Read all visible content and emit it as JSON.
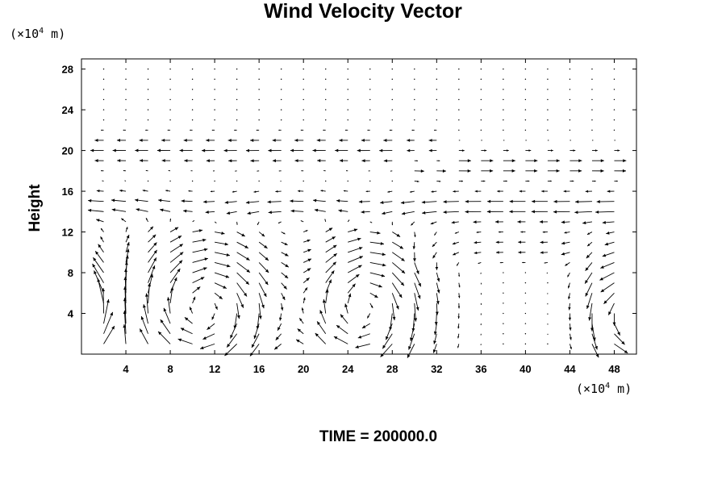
{
  "chart_data": {
    "type": "vector-field",
    "title": "Wind Velocity Vector",
    "ylabel": "Height",
    "xlabel": "",
    "unit_y_prefix": "(×10",
    "unit_exp": "4",
    "unit_suffix": " m)",
    "unit_x_prefix": "(×10",
    "time_label": "TIME = 200000.0",
    "xlim": [
      0,
      50
    ],
    "ylim": [
      0,
      29
    ],
    "x_ticks": [
      4,
      8,
      12,
      16,
      20,
      24,
      28,
      32,
      36,
      40,
      44,
      48
    ],
    "y_ticks": [
      4,
      8,
      12,
      16,
      20,
      24,
      28
    ],
    "grid": false,
    "grid_spacing_x": 2,
    "grid_spacing_y": 1,
    "eddies": [
      {
        "cx": 11,
        "cy": 4.5,
        "rx": 7,
        "ry": 7,
        "direction": "clockwise"
      },
      {
        "cx": 25.5,
        "cy": 4.5,
        "rx": 5.5,
        "ry": 7,
        "direction": "clockwise"
      },
      {
        "cx": 49,
        "cy": 4,
        "rx": 3.5,
        "ry": 6,
        "direction": "counterclockwise"
      },
      {
        "cx": 1,
        "cy": 4,
        "rx": 2.5,
        "ry": 5,
        "direction": "counterclockwise"
      }
    ],
    "jets": [
      {
        "y": 14.5,
        "from_x": 0,
        "to_x": 50,
        "direction": "west",
        "strength": "strong"
      },
      {
        "y": 20,
        "from_x": 0,
        "to_x": 31,
        "direction": "west",
        "strength": "moderate"
      },
      {
        "y": 18.5,
        "from_x": 31,
        "to_x": 50,
        "direction": "east",
        "strength": "moderate"
      },
      {
        "y": 10.5,
        "from_x": 30,
        "to_x": 44,
        "direction": "west",
        "strength": "weak"
      }
    ]
  }
}
